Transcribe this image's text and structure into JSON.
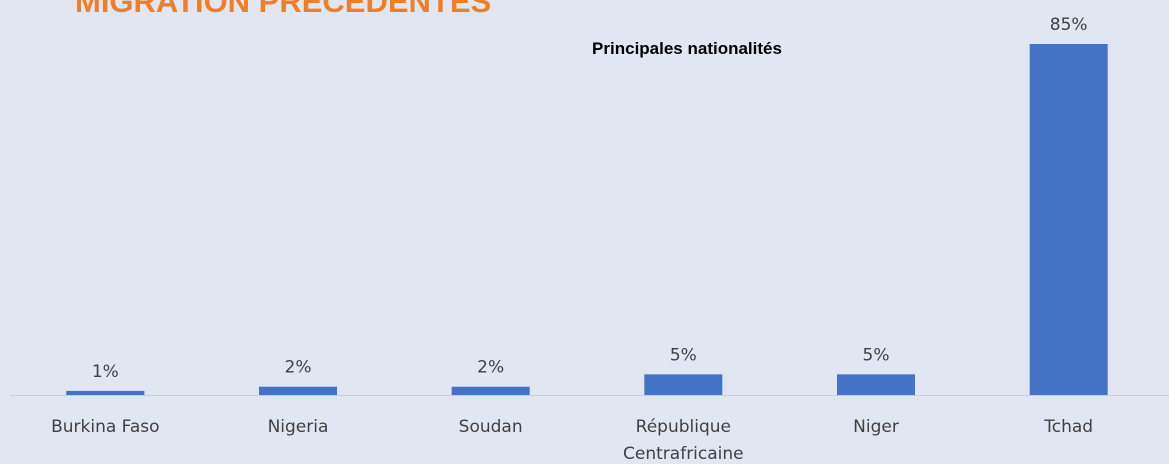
{
  "header": {
    "title": "MIGRATION PRÉCÉDENTES"
  },
  "chart_data": {
    "type": "bar",
    "title": "Principales nationalités",
    "categories": [
      "Burkina Faso",
      "Nigeria",
      "Soudan",
      "République Centrafricaine",
      "Niger",
      "Tchad"
    ],
    "values": [
      1,
      2,
      2,
      5,
      5,
      85
    ],
    "value_labels": [
      "1%",
      "2%",
      "2%",
      "5%",
      "5%",
      "85%"
    ],
    "color": "#4472c4"
  }
}
